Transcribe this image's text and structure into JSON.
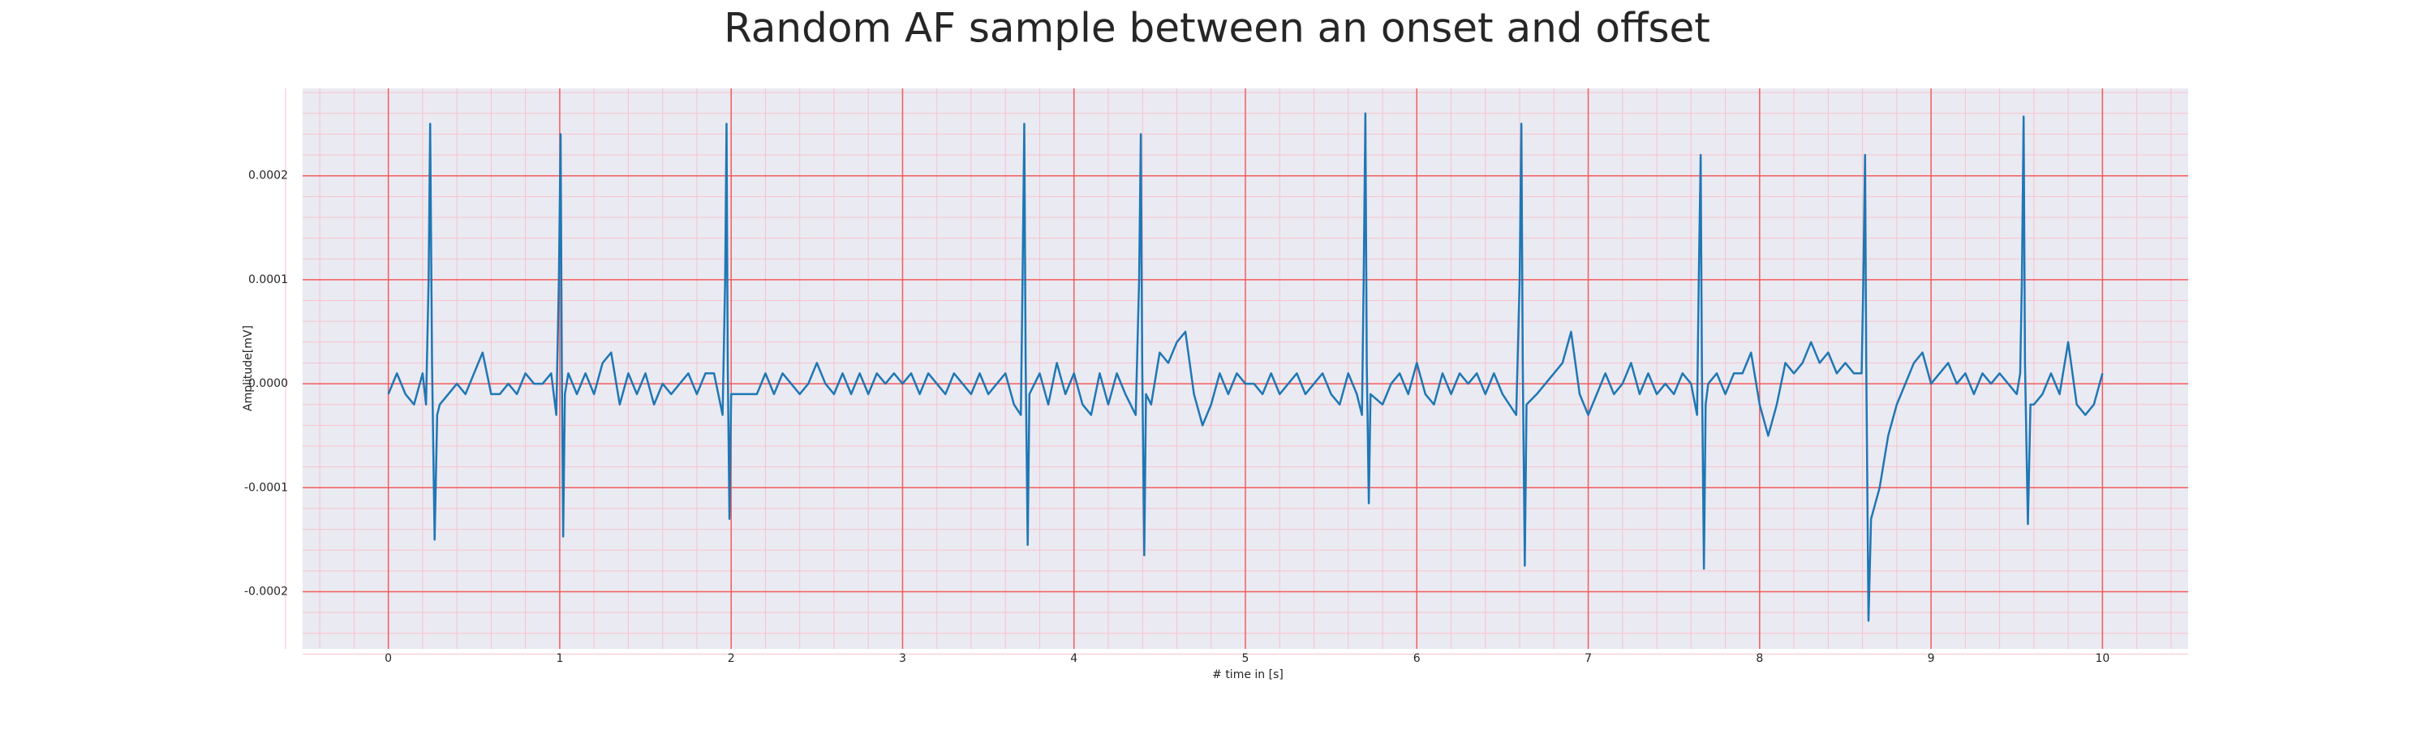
{
  "chart_data": {
    "type": "line",
    "title": "Random AF sample between an onset and offset",
    "x_label": "# time in [s]",
    "y_label": "Amplitude[mV]",
    "color": "#1f77b4",
    "background": "#eaeaf2",
    "grid": true,
    "grid_color": "#f25c5c",
    "minor_grid": true,
    "minor_grid_color": "#f7c2cc",
    "xlim": [
      -0.5,
      10.5
    ],
    "ylim": [
      -0.000255,
      0.000284
    ],
    "xticks": [
      0,
      1,
      2,
      3,
      4,
      5,
      6,
      7,
      8,
      9,
      10
    ],
    "yticks": [
      -0.0002,
      -0.0001,
      {
        "value": 0,
        "label": "0.0000"
      },
      0.0001,
      0.0002
    ],
    "x": [
      0,
      0.05,
      0.1,
      0.15,
      0.2,
      0.22,
      0.235,
      0.244,
      0.255,
      0.27,
      0.285,
      0.3,
      0.35,
      0.4,
      0.45,
      0.5,
      0.55,
      0.6,
      0.65,
      0.7,
      0.75,
      0.8,
      0.85,
      0.9,
      0.95,
      0.98,
      0.995,
      1.005,
      1.012,
      1.02,
      1.03,
      1.05,
      1.1,
      1.15,
      1.2,
      1.25,
      1.3,
      1.35,
      1.4,
      1.45,
      1.5,
      1.55,
      1.6,
      1.65,
      1.7,
      1.75,
      1.8,
      1.85,
      1.9,
      1.95,
      1.965,
      1.973,
      1.98,
      1.99,
      2.0,
      2.05,
      2.1,
      2.15,
      2.2,
      2.25,
      2.3,
      2.35,
      2.4,
      2.45,
      2.5,
      2.55,
      2.6,
      2.65,
      2.7,
      2.75,
      2.8,
      2.85,
      2.9,
      2.95,
      3.0,
      3.05,
      3.1,
      3.15,
      3.2,
      3.25,
      3.3,
      3.35,
      3.4,
      3.45,
      3.5,
      3.55,
      3.6,
      3.65,
      3.69,
      3.7,
      3.71,
      3.718,
      3.73,
      3.74,
      3.8,
      3.85,
      3.9,
      3.95,
      4.0,
      4.05,
      4.1,
      4.15,
      4.2,
      4.25,
      4.3,
      4.36,
      4.38,
      4.39,
      4.398,
      4.41,
      4.42,
      4.45,
      4.5,
      4.55,
      4.6,
      4.65,
      4.7,
      4.75,
      4.8,
      4.85,
      4.9,
      4.95,
      5.0,
      5.05,
      5.1,
      5.15,
      5.2,
      5.25,
      5.3,
      5.35,
      5.4,
      5.45,
      5.5,
      5.55,
      5.6,
      5.65,
      5.68,
      5.69,
      5.7,
      5.708,
      5.72,
      5.73,
      5.8,
      5.85,
      5.9,
      5.95,
      6.0,
      6.05,
      6.1,
      6.15,
      6.2,
      6.25,
      6.3,
      6.35,
      6.4,
      6.45,
      6.5,
      6.58,
      6.6,
      6.61,
      6.618,
      6.63,
      6.64,
      6.7,
      6.75,
      6.8,
      6.85,
      6.9,
      6.95,
      7.0,
      7.05,
      7.1,
      7.15,
      7.2,
      7.25,
      7.3,
      7.35,
      7.4,
      7.45,
      7.5,
      7.55,
      7.6,
      7.635,
      7.645,
      7.656,
      7.663,
      7.675,
      7.685,
      7.7,
      7.75,
      7.8,
      7.85,
      7.9,
      7.95,
      8.0,
      8.05,
      8.1,
      8.15,
      8.2,
      8.25,
      8.3,
      8.35,
      8.4,
      8.45,
      8.5,
      8.55,
      8.595,
      8.605,
      8.615,
      8.622,
      8.635,
      8.65,
      8.7,
      8.75,
      8.8,
      8.85,
      8.9,
      8.95,
      9.0,
      9.05,
      9.1,
      9.15,
      9.2,
      9.25,
      9.3,
      9.35,
      9.4,
      9.45,
      9.5,
      9.52,
      9.53,
      9.54,
      9.548,
      9.565,
      9.58,
      9.6,
      9.65,
      9.7,
      9.75,
      9.8,
      9.85,
      9.9,
      9.95,
      10.0
    ],
    "values": [
      -1e-05,
      1e-05,
      -1e-05,
      -2e-05,
      1e-05,
      -2e-05,
      0.0001,
      0.00025,
      2e-05,
      -0.00015,
      -3e-05,
      -2e-05,
      -1e-05,
      0,
      -1e-05,
      1e-05,
      3e-05,
      -1e-05,
      -1e-05,
      0,
      -1e-05,
      1e-05,
      0,
      0,
      1e-05,
      -3e-05,
      0.0001,
      0.00024,
      2e-05,
      -0.000147,
      -1e-05,
      1e-05,
      -1e-05,
      1e-05,
      -1e-05,
      2e-05,
      3e-05,
      -2e-05,
      1e-05,
      -1e-05,
      1e-05,
      -2e-05,
      0,
      -1e-05,
      0,
      1e-05,
      -1e-05,
      1e-05,
      1e-05,
      -3e-05,
      0.0001,
      0.00025,
      2e-05,
      -0.00013,
      -1e-05,
      -1e-05,
      -1e-05,
      -1e-05,
      1e-05,
      -1e-05,
      1e-05,
      0,
      -1e-05,
      0,
      2e-05,
      0,
      -1e-05,
      1e-05,
      -1e-05,
      1e-05,
      -1e-05,
      1e-05,
      0,
      1e-05,
      0,
      1e-05,
      -1e-05,
      1e-05,
      0,
      -1e-05,
      1e-05,
      0,
      -1e-05,
      1e-05,
      -1e-05,
      0,
      1e-05,
      -2e-05,
      -3e-05,
      0.0001,
      0.00025,
      2e-05,
      -0.000155,
      -1e-05,
      1e-05,
      -2e-05,
      2e-05,
      -1e-05,
      1e-05,
      -2e-05,
      -3e-05,
      1e-05,
      -2e-05,
      1e-05,
      -1e-05,
      -3e-05,
      0.0001,
      0.00024,
      2e-05,
      -0.000165,
      -1e-05,
      -2e-05,
      3e-05,
      2e-05,
      4e-05,
      5e-05,
      -1e-05,
      -4e-05,
      -2e-05,
      1e-05,
      -1e-05,
      1e-05,
      0,
      0,
      -1e-05,
      1e-05,
      -1e-05,
      0,
      1e-05,
      -1e-05,
      0,
      1e-05,
      -1e-05,
      -2e-05,
      1e-05,
      -1e-05,
      -3e-05,
      0.0001,
      0.00026,
      2e-05,
      -0.000115,
      -1e-05,
      -2e-05,
      0,
      1e-05,
      -1e-05,
      2e-05,
      -1e-05,
      -2e-05,
      1e-05,
      -1e-05,
      1e-05,
      0,
      1e-05,
      -1e-05,
      1e-05,
      -1e-05,
      -3e-05,
      0.0001,
      0.00025,
      2e-05,
      -0.000175,
      -2e-05,
      -1e-05,
      0,
      1e-05,
      2e-05,
      5e-05,
      -1e-05,
      -3e-05,
      -1e-05,
      1e-05,
      -1e-05,
      0,
      2e-05,
      -1e-05,
      1e-05,
      -1e-05,
      0,
      -1e-05,
      1e-05,
      0,
      -3e-05,
      0.0001,
      0.00022,
      2e-05,
      -0.000178,
      -2e-05,
      0,
      1e-05,
      -1e-05,
      1e-05,
      1e-05,
      3e-05,
      -2e-05,
      -5e-05,
      -2e-05,
      2e-05,
      1e-05,
      2e-05,
      4e-05,
      2e-05,
      3e-05,
      1e-05,
      2e-05,
      1e-05,
      1e-05,
      0.0001,
      0.00022,
      2e-05,
      -0.000228,
      -0.00013,
      -0.0001,
      -5e-05,
      -2e-05,
      0,
      2e-05,
      3e-05,
      0,
      1e-05,
      2e-05,
      0,
      1e-05,
      -1e-05,
      1e-05,
      0,
      1e-05,
      0,
      -1e-05,
      1e-05,
      0.0001,
      0.000257,
      2e-05,
      -0.000135,
      -2e-05,
      -2e-05,
      -1e-05,
      1e-05,
      -1e-05,
      4e-05,
      -2e-05,
      -3e-05,
      -2e-05,
      1e-05
    ]
  }
}
